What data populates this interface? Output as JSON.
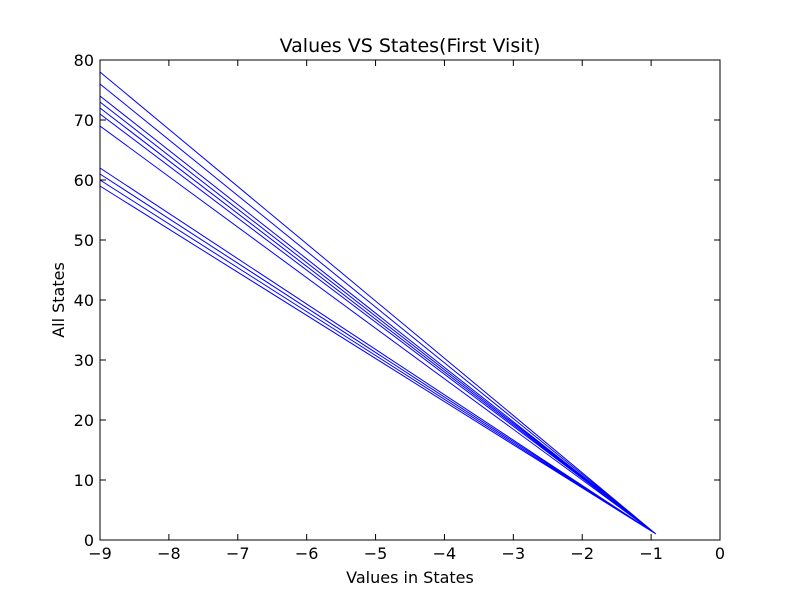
{
  "chart_data": {
    "type": "line",
    "title": "Values VS States(First Visit)",
    "xlabel": "Values in States",
    "ylabel": "All States",
    "xlim": [
      -9,
      0
    ],
    "ylim": [
      0,
      80
    ],
    "xticks": [
      -9,
      -8,
      -7,
      -6,
      -5,
      -4,
      -3,
      -2,
      -1,
      0
    ],
    "yticks": [
      0,
      10,
      20,
      30,
      40,
      50,
      60,
      70,
      80
    ],
    "grid": false,
    "legend": "none",
    "line_color": "#0000ff",
    "series": [
      {
        "description_source": "single connected polyline; state n has value -9*(n-1)/n + ... (approximately -9 + 8/n-like curve)",
        "points": [
          {
            "x": -0.93,
            "y": 1
          },
          {
            "x": -9.0,
            "y": 78
          },
          {
            "x": -0.93,
            "y": 1
          },
          {
            "x": -9.0,
            "y": 76
          },
          {
            "x": -0.93,
            "y": 1
          },
          {
            "x": -9.0,
            "y": 74
          },
          {
            "x": -0.93,
            "y": 1
          },
          {
            "x": -9.0,
            "y": 73
          },
          {
            "x": -0.93,
            "y": 1
          },
          {
            "x": -9.0,
            "y": 72
          },
          {
            "x": -0.93,
            "y": 1
          },
          {
            "x": -9.0,
            "y": 71
          },
          {
            "x": -0.93,
            "y": 1
          },
          {
            "x": -9.0,
            "y": 69
          },
          {
            "x": -0.93,
            "y": 1
          },
          {
            "x": -9.0,
            "y": 62
          },
          {
            "x": -0.93,
            "y": 1
          },
          {
            "x": -9.0,
            "y": 61
          },
          {
            "x": -0.93,
            "y": 1
          },
          {
            "x": -9.0,
            "y": 60
          },
          {
            "x": -0.93,
            "y": 1
          },
          {
            "x": -9.0,
            "y": 59
          }
        ]
      }
    ]
  }
}
